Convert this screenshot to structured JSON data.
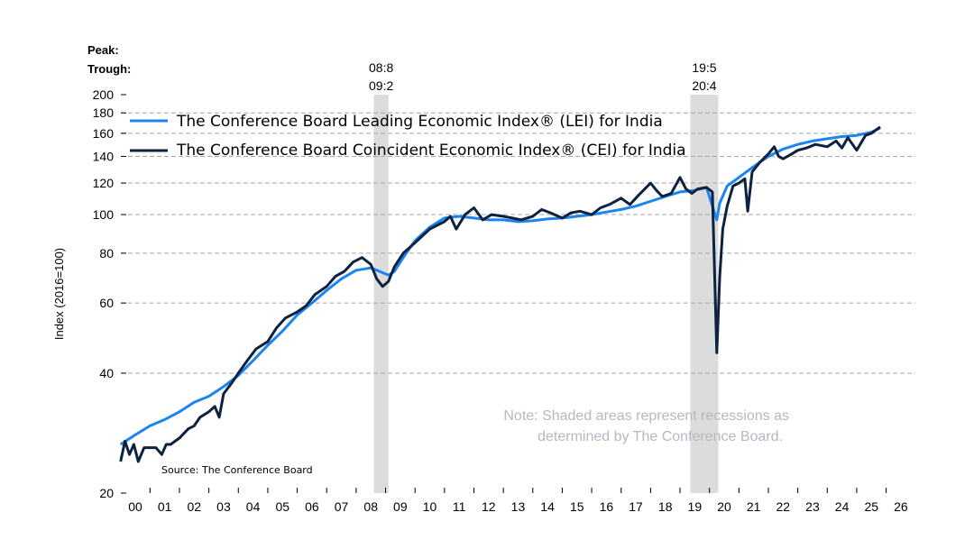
{
  "chart_data": {
    "type": "line",
    "title": "",
    "xlabel": "",
    "ylabel": "Index (2016=100)",
    "y_scale": "log",
    "ylim": [
      20,
      200
    ],
    "y_ticks": [
      20,
      40,
      60,
      80,
      100,
      120,
      140,
      160,
      180,
      200
    ],
    "xlim": [
      2000.0,
      2026.0
    ],
    "x_tick_labels": [
      "00",
      "01",
      "02",
      "03",
      "04",
      "05",
      "06",
      "07",
      "08",
      "09",
      "10",
      "11",
      "12",
      "13",
      "14",
      "15",
      "16",
      "17",
      "18",
      "19",
      "20",
      "21",
      "22",
      "23",
      "24",
      "25",
      "26"
    ],
    "grid": "horizontal dashed",
    "legend": {
      "position": "top-left",
      "entries": [
        {
          "label": "The Conference Board Leading Economic Index® (LEI) for India",
          "color": "#1a85f0"
        },
        {
          "label": "The Conference Board Coincident Economic Index® (CEI) for India",
          "color": "#0d2240"
        }
      ]
    },
    "peak_label": "Peak:",
    "trough_label": "Trough:",
    "recessions": [
      {
        "peak": "08:8",
        "trough": "09:2",
        "start": 2008.6,
        "end": 2009.1
      },
      {
        "peak": "19:5",
        "trough": "20:4",
        "start": 2019.35,
        "end": 2020.3
      }
    ],
    "note_lines": [
      "Note: Shaded areas represent recessions as",
      "determined by The Conference Board."
    ],
    "source": "Source: The Conference Board",
    "series": [
      {
        "name": "LEI",
        "color": "#1a85f0",
        "x": [
          2000.0,
          2000.5,
          2001.0,
          2001.5,
          2002.0,
          2002.5,
          2003.0,
          2003.5,
          2004.0,
          2004.5,
          2005.0,
          2005.5,
          2006.0,
          2006.5,
          2007.0,
          2007.5,
          2008.0,
          2008.5,
          2008.8,
          2009.1,
          2009.3,
          2009.6,
          2010.0,
          2010.5,
          2011.0,
          2011.5,
          2012.0,
          2012.5,
          2013.0,
          2013.5,
          2014.0,
          2014.5,
          2015.0,
          2015.5,
          2016.0,
          2016.5,
          2017.0,
          2017.5,
          2018.0,
          2018.5,
          2019.0,
          2019.5,
          2019.9,
          2020.25,
          2020.35,
          2020.6,
          2021.0,
          2021.5,
          2022.0,
          2022.5,
          2023.0,
          2023.5,
          2024.0,
          2024.5,
          2025.0,
          2025.5,
          2025.8
        ],
        "values": [
          26.5,
          28.0,
          29.5,
          30.6,
          32.0,
          33.8,
          35.0,
          37.0,
          39.5,
          43.0,
          47.0,
          51.0,
          56.0,
          60.0,
          64.5,
          69.0,
          72.5,
          73.5,
          72.0,
          70.5,
          72.0,
          78.0,
          86.0,
          93.0,
          98.0,
          99.0,
          98.0,
          97.0,
          97.0,
          96.0,
          96.5,
          97.5,
          98.0,
          99.0,
          100.0,
          101.5,
          103.0,
          105.0,
          108.0,
          111.0,
          114.0,
          115.0,
          117.0,
          97.0,
          107.0,
          118.0,
          124.0,
          132.0,
          140.0,
          146.0,
          150.0,
          153.0,
          155.0,
          157.0,
          158.0,
          161.0,
          165.0
        ]
      },
      {
        "name": "CEI",
        "color": "#0d2240",
        "x": [
          2000.0,
          2000.15,
          2000.3,
          2000.45,
          2000.6,
          2000.8,
          2001.0,
          2001.2,
          2001.4,
          2001.55,
          2001.7,
          2002.0,
          2002.3,
          2002.5,
          2002.7,
          2003.0,
          2003.2,
          2003.35,
          2003.5,
          2003.8,
          2004.0,
          2004.3,
          2004.6,
          2005.0,
          2005.3,
          2005.6,
          2006.0,
          2006.3,
          2006.6,
          2007.0,
          2007.3,
          2007.6,
          2007.9,
          2008.2,
          2008.5,
          2008.7,
          2008.9,
          2009.1,
          2009.3,
          2009.6,
          2010.0,
          2010.5,
          2011.0,
          2011.2,
          2011.4,
          2011.7,
          2012.0,
          2012.3,
          2012.6,
          2013.0,
          2013.3,
          2013.6,
          2014.0,
          2014.3,
          2014.6,
          2015.0,
          2015.3,
          2015.6,
          2016.0,
          2016.3,
          2016.6,
          2017.0,
          2017.3,
          2017.6,
          2018.0,
          2018.2,
          2018.4,
          2018.7,
          2019.0,
          2019.2,
          2019.4,
          2019.6,
          2019.9,
          2020.1,
          2020.25,
          2020.35,
          2020.45,
          2020.6,
          2020.8,
          2021.0,
          2021.2,
          2021.3,
          2021.45,
          2021.7,
          2022.0,
          2022.2,
          2022.35,
          2022.5,
          2022.8,
          2023.0,
          2023.3,
          2023.6,
          2024.0,
          2024.3,
          2024.5,
          2024.7,
          2025.0,
          2025.3,
          2025.5,
          2025.8
        ],
        "values": [
          24.0,
          27.0,
          25.0,
          26.5,
          24.0,
          26.0,
          26.0,
          26.0,
          25.0,
          26.5,
          26.5,
          27.5,
          29.0,
          29.5,
          31.0,
          32.0,
          33.0,
          31.0,
          35.5,
          38.0,
          40.0,
          43.0,
          46.0,
          48.0,
          52.0,
          55.0,
          57.0,
          59.0,
          63.0,
          66.0,
          70.0,
          72.0,
          76.0,
          78.0,
          75.0,
          69.0,
          66.0,
          68.0,
          74.0,
          80.0,
          85.0,
          92.0,
          96.0,
          99.0,
          92.0,
          100.0,
          104.0,
          97.0,
          100.0,
          99.0,
          98.0,
          97.0,
          99.0,
          103.0,
          101.0,
          98.0,
          101.0,
          102.0,
          100.0,
          104.0,
          106.0,
          110.0,
          106.0,
          112.0,
          120.0,
          115.0,
          111.0,
          113.0,
          124.0,
          116.0,
          113.0,
          116.0,
          117.0,
          114.0,
          45.0,
          70.0,
          92.0,
          105.0,
          118.0,
          120.0,
          123.0,
          102.0,
          128.0,
          135.0,
          142.0,
          148.0,
          140.0,
          138.0,
          142.0,
          145.0,
          147.0,
          150.0,
          148.0,
          153.0,
          147.0,
          156.0,
          145.0,
          158.0,
          160.0,
          166.0
        ]
      }
    ]
  }
}
